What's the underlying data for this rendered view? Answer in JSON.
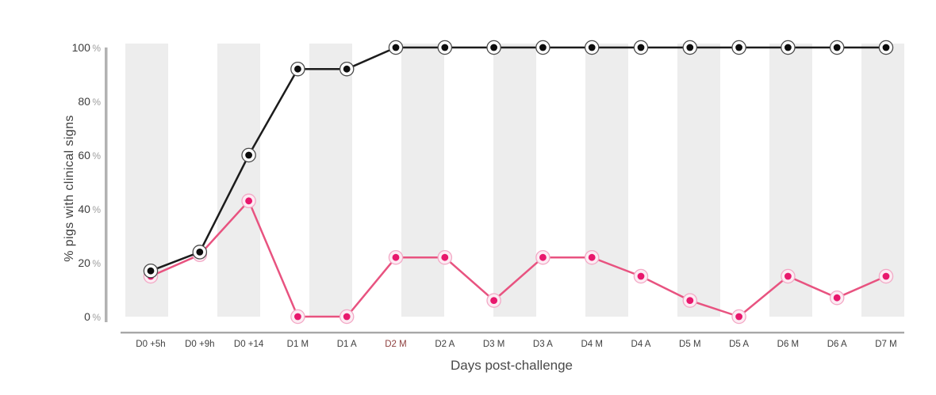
{
  "figure": {
    "y_axis_title": "% pigs with clinical signs",
    "x_axis_title": "Days post-challenge"
  },
  "chart_data": {
    "type": "line",
    "title": "",
    "xlabel": "Days post-challenge",
    "ylabel": "% pigs with clinical signs",
    "categories": [
      "D0 +5h",
      "D0 +9h",
      "D0 +14",
      "D1 M",
      "D1 A",
      "D2 M",
      "D2 A",
      "D3 M",
      "D3 A",
      "D4 M",
      "D4 A",
      "D5 M",
      "D5 A",
      "D6 M",
      "D6 A",
      "D7 M"
    ],
    "highlighted_category": {
      "label": "D2 M",
      "index": 5,
      "color": "#8f403f"
    },
    "series": [
      {
        "name": "pink",
        "line_color": "#e85380",
        "dot_color": "#e8186d",
        "halo_fill": "#fcecf3",
        "halo_stroke": "#f3a9c6",
        "values": [
          15,
          23,
          43,
          0,
          0,
          22,
          22,
          6,
          22,
          22,
          15,
          6,
          0,
          15,
          7,
          15
        ]
      },
      {
        "name": "black",
        "line_color": "#1c1c1c",
        "dot_color": "#0d0d0d",
        "halo_fill": "#ffffff",
        "halo_stroke": "#4a4a4a",
        "values": [
          17,
          24,
          60,
          92,
          92,
          100,
          100,
          100,
          100,
          100,
          100,
          100,
          100,
          100,
          100,
          100
        ]
      }
    ],
    "yticks": [
      0,
      20,
      40,
      60,
      80,
      100
    ],
    "ytick_suffix": "%",
    "ylim": [
      0,
      100
    ],
    "legend": "none",
    "grid": "vertical-alternating-bands",
    "band_color": "#ededed",
    "axis_line_color": "#b2b2b2",
    "bottom_axis_color": "#a8a8a8",
    "tick_label_color": "#3f3f3f",
    "ytick_number_color": "#3d3d3d",
    "ytick_suffix_color": "#9d9d9d"
  }
}
